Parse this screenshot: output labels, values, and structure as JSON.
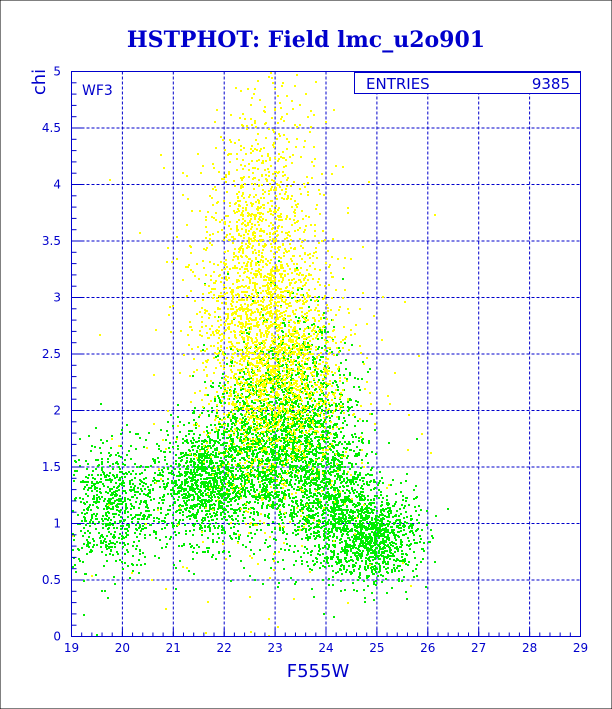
{
  "chart_data": {
    "type": "scatter",
    "title": "HSTPHOT: Field lmc_u2o901",
    "xlabel": "F555W",
    "ylabel": "chi",
    "xlim": [
      19,
      29
    ],
    "ylim": [
      0,
      5
    ],
    "xticks": [
      "19",
      "20",
      "21",
      "22",
      "23",
      "24",
      "25",
      "26",
      "27",
      "28",
      "29"
    ],
    "yticks": [
      "0",
      "0.5",
      "1",
      "1.5",
      "2",
      "2.5",
      "3",
      "3.5",
      "4",
      "4.5",
      "5"
    ],
    "grid": true,
    "panel_label": "WF3",
    "stats": {
      "label": "ENTRIES",
      "value": "9385"
    },
    "colors": {
      "title": "#0000cc",
      "axes": "#0000cc",
      "grid": "#0000cc",
      "green": "#00ee00",
      "yellow": "#ffff00"
    },
    "series": [
      {
        "color": "green",
        "approx_count": 6200,
        "clusters": [
          {
            "cx": 19.8,
            "cy": 1.15,
            "sx": 0.55,
            "sy": 0.28,
            "weight": 0.12
          },
          {
            "cx": 21.6,
            "cy": 1.35,
            "sx": 0.45,
            "sy": 0.25,
            "weight": 0.18
          },
          {
            "cx": 22.7,
            "cy": 1.7,
            "sx": 0.55,
            "sy": 0.4,
            "weight": 0.22
          },
          {
            "cx": 23.6,
            "cy": 1.75,
            "sx": 0.5,
            "sy": 0.45,
            "weight": 0.16
          },
          {
            "cx": 24.1,
            "cy": 1.2,
            "sx": 0.45,
            "sy": 0.3,
            "weight": 0.12
          },
          {
            "cx": 24.9,
            "cy": 0.9,
            "sx": 0.45,
            "sy": 0.2,
            "weight": 0.16
          },
          {
            "cx": 23.2,
            "cy": 2.3,
            "sx": 0.55,
            "sy": 0.4,
            "weight": 0.04
          }
        ]
      },
      {
        "color": "yellow",
        "approx_count": 3185,
        "clusters": [
          {
            "cx": 22.6,
            "cy": 2.8,
            "sx": 0.55,
            "sy": 0.7,
            "weight": 0.5
          },
          {
            "cx": 23.3,
            "cy": 2.3,
            "sx": 0.6,
            "sy": 0.55,
            "weight": 0.3
          },
          {
            "cx": 22.9,
            "cy": 3.9,
            "sx": 0.5,
            "sy": 0.55,
            "weight": 0.12
          },
          {
            "cx": 22.5,
            "cy": 2.0,
            "sx": 1.5,
            "sy": 1.3,
            "weight": 0.08
          }
        ]
      }
    ]
  }
}
